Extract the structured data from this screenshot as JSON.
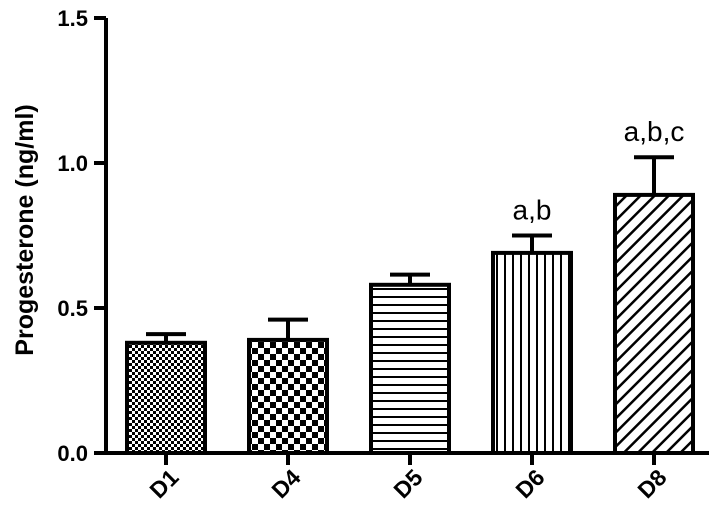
{
  "chart_data": {
    "type": "bar",
    "title": "",
    "xlabel": "",
    "ylabel": "Progesterone (ng/ml)",
    "ylim": [
      0,
      1.5
    ],
    "yticks": [
      0.0,
      0.5,
      1.0,
      1.5
    ],
    "ytick_labels": [
      "0.0",
      "0.5",
      "1.0",
      "1.5"
    ],
    "grid": false,
    "legend": "none",
    "categories": [
      "D1",
      "D4",
      "D5",
      "D6",
      "D8"
    ],
    "values": [
      0.38,
      0.39,
      0.58,
      0.69,
      0.89
    ],
    "errors": [
      0.03,
      0.07,
      0.035,
      0.06,
      0.13
    ],
    "annotations": [
      "",
      "",
      "",
      "a,b",
      "a,b,c"
    ],
    "patterns": [
      "fine-checker",
      "coarse-checker",
      "horizontal-lines",
      "vertical-lines",
      "diagonal-lines"
    ],
    "colors": {
      "bar_stroke": "#000000",
      "fill": "#000000",
      "background": "#ffffff"
    }
  }
}
